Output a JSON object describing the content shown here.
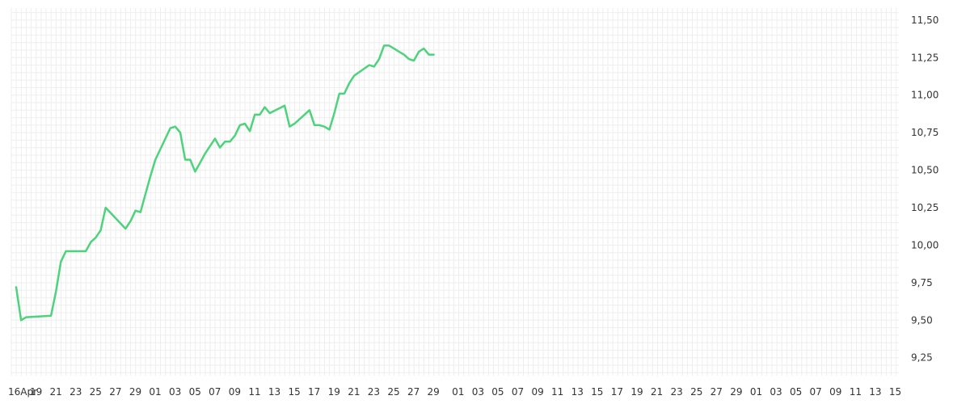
{
  "chart_data": {
    "type": "line",
    "title": "",
    "xlabel": "",
    "ylabel": "",
    "ylim": [
      9.13,
      11.58
    ],
    "y_ticks": [
      "9,25",
      "9,50",
      "9,75",
      "10,00",
      "10,25",
      "10,50",
      "10,75",
      "11,00",
      "11,25",
      "11,50"
    ],
    "x_tick_labels": [
      "16Apr",
      "19",
      "21",
      "23",
      "25",
      "27",
      "29",
      "01",
      "03",
      "05",
      "07",
      "09",
      "11",
      "13",
      "15",
      "17",
      "19",
      "21",
      "23",
      "25",
      "27",
      "29",
      "01",
      "03",
      "05",
      "07",
      "09",
      "11",
      "13",
      "15",
      "17",
      "19",
      "21",
      "23",
      "25",
      "27",
      "29",
      "01",
      "03",
      "05",
      "07",
      "09",
      "11",
      "13",
      "15"
    ],
    "grid": true,
    "colors": {
      "line": "#4cd37b",
      "grid": "#eeeeee",
      "text": "#333333"
    },
    "series": [
      {
        "x": [
          0,
          1,
          2,
          7,
          8,
          9,
          10,
          11,
          14,
          15,
          16,
          17,
          18,
          22,
          23,
          24,
          25,
          26,
          27,
          28,
          31,
          32,
          33,
          34,
          35,
          36,
          37,
          38,
          40,
          41,
          42,
          43,
          44,
          45,
          46,
          47,
          48,
          49,
          50,
          51,
          54,
          55,
          56,
          57,
          58,
          59,
          60,
          61,
          62,
          63,
          64,
          65,
          66,
          67,
          68,
          71,
          72,
          73,
          74,
          75,
          76,
          77,
          78,
          79,
          80,
          81,
          82,
          83,
          84,
          85,
          86,
          87,
          88,
          89,
          90,
          91,
          92,
          93,
          94,
          95
        ],
        "y": [
          9.72,
          9.5,
          9.52,
          9.53,
          9.69,
          9.89,
          9.96,
          9.96,
          9.96,
          10.02,
          10.05,
          10.1,
          10.25,
          10.11,
          10.16,
          10.23,
          10.22,
          10.34,
          10.46,
          10.57,
          10.78,
          10.79,
          10.75,
          10.57,
          10.57,
          10.49,
          10.55,
          10.61,
          10.71,
          10.65,
          10.69,
          10.69,
          10.73,
          10.8,
          10.81,
          10.76,
          10.87,
          10.87,
          10.92,
          10.88,
          10.93,
          10.79,
          10.81,
          10.84,
          10.87,
          10.9,
          10.8,
          10.8,
          10.79,
          10.77,
          10.88,
          11.01,
          11.01,
          11.08,
          11.13,
          11.2,
          11.19,
          11.24,
          11.33,
          11.33,
          11.31,
          11.29,
          11.27,
          11.24,
          11.23,
          11.29,
          11.31,
          11.27,
          11.27,
          11.28,
          11.28,
          11.28,
          11.28,
          11.28,
          11.28,
          11.28,
          11.28,
          11.28,
          11.28,
          11.28
        ]
      }
    ]
  }
}
